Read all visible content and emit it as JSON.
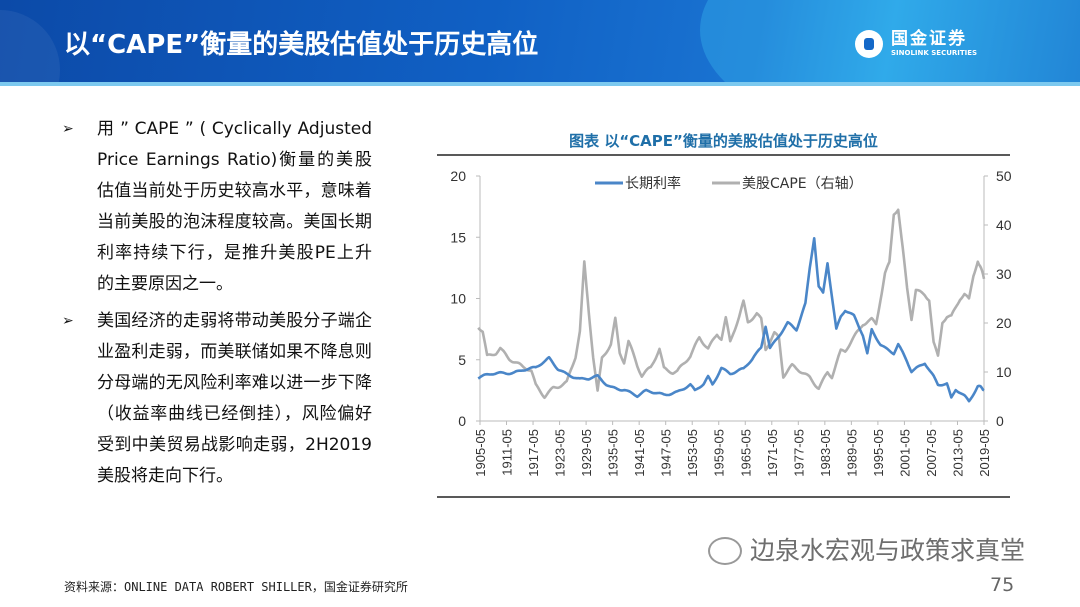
{
  "header": {
    "title": "以“CAPE”衡量的美股估值处于历史高位",
    "logo_cn": "国金证券",
    "logo_en": "SINOLINK SECURITIES"
  },
  "bullets": [
    "用 ” CAPE ” ( Cyclically Adjusted Price Earnings Ratio)衡量的美股估值当前处于历史较高水平，意味着当前美股的泡沫程度较高。美国长期利率持续下行，是推升美股PE上升的主要原因之一。",
    "美国经济的走弱将带动美股分子端企业盈利走弱，而美联储如果不降息则分母端的无风险利率难以进一步下降（收益率曲线已经倒挂），风险偏好受到中美贸易战影响走弱，2H2019美股将走向下行。"
  ],
  "bullet_marker": "➢",
  "source": "资料来源：ONLINE DATA ROBERT SHILLER，国金证券研究所",
  "watermark": "边泉水宏观与政策求真堂",
  "page_number": "75",
  "chart_data": {
    "type": "line",
    "title": "图表  以“CAPE”衡量的美股估值处于历史高位",
    "legend_position": "top",
    "grid": false,
    "x_ticks": [
      "1905-05",
      "1911-05",
      "1917-05",
      "1923-05",
      "1929-05",
      "1935-05",
      "1941-05",
      "1947-05",
      "1953-05",
      "1959-05",
      "1965-05",
      "1971-05",
      "1977-05",
      "1983-05",
      "1989-05",
      "1995-05",
      "2001-05",
      "2007-05",
      "2013-05",
      "2019-05"
    ],
    "xlim": [
      1905.4,
      2019.4
    ],
    "ylim_left": [
      0,
      20
    ],
    "yticks_left": [
      0,
      5,
      10,
      15,
      20
    ],
    "ylim_right": [
      0,
      50
    ],
    "yticks_right": [
      0,
      10,
      20,
      30,
      40,
      50
    ],
    "series": [
      {
        "name": "长期利率",
        "axis": "left",
        "color": "#4a86c8",
        "x": [
          1905,
          1908,
          1910,
          1913,
          1915,
          1918,
          1920,
          1921,
          1923,
          1925,
          1928,
          1930,
          1932,
          1934,
          1935,
          1938,
          1940,
          1941,
          1943,
          1945,
          1947,
          1950,
          1953,
          1954,
          1956,
          1957,
          1958,
          1960,
          1962,
          1965,
          1967,
          1969,
          1970,
          1971,
          1973,
          1975,
          1977,
          1979,
          1980,
          1981,
          1982,
          1983,
          1984,
          1986,
          1987,
          1988,
          1990,
          1992,
          1993,
          1994,
          1996,
          1997,
          1999,
          2000,
          2002,
          2003,
          2006,
          2008,
          2009,
          2011,
          2012,
          2013,
          2015,
          2016,
          2018,
          2019.4
        ],
        "y": [
          3.5,
          3.8,
          3.9,
          4.0,
          4.2,
          4.3,
          4.8,
          5.1,
          4.3,
          3.9,
          3.4,
          3.4,
          3.6,
          3.0,
          2.8,
          2.6,
          2.2,
          2.0,
          2.4,
          2.3,
          2.2,
          2.4,
          2.9,
          2.4,
          3.0,
          3.6,
          3.0,
          4.4,
          3.9,
          4.2,
          5.0,
          6.0,
          7.8,
          6.0,
          7.0,
          8.0,
          7.4,
          9.5,
          12.5,
          15.0,
          11.0,
          10.5,
          13.0,
          7.5,
          8.5,
          9.0,
          8.5,
          7.0,
          5.5,
          7.5,
          6.3,
          6.0,
          5.5,
          6.2,
          4.8,
          4.0,
          4.8,
          3.7,
          3.0,
          3.0,
          1.8,
          2.5,
          2.0,
          1.6,
          2.9,
          2.5
        ]
      },
      {
        "name": "美股CAPE（右轴）",
        "axis": "right",
        "color": "#b0b0b0",
        "x": [
          1905,
          1906,
          1907,
          1909,
          1910,
          1912,
          1915,
          1917,
          1918,
          1920,
          1922,
          1925,
          1927,
          1928,
          1929,
          1930,
          1931,
          1932,
          1933,
          1935,
          1936,
          1937,
          1938,
          1939,
          1941,
          1942,
          1944,
          1946,
          1947,
          1949,
          1950,
          1953,
          1955,
          1957,
          1959,
          1960,
          1961,
          1962,
          1964,
          1965,
          1966,
          1968,
          1969,
          1970,
          1972,
          1973,
          1974,
          1976,
          1978,
          1980,
          1982,
          1984,
          1985,
          1987,
          1988,
          1990,
          1992,
          1994,
          1995,
          1997,
          1998,
          1999,
          2000,
          2001,
          2002,
          2003,
          2004,
          2006,
          2007,
          2008,
          2009,
          2010,
          2011,
          2012,
          2014,
          2015,
          2016,
          2017,
          2018,
          2019.4
        ],
        "y": [
          19,
          18,
          13,
          14,
          15,
          13,
          11,
          10,
          7,
          5,
          7,
          8,
          13,
          18,
          32,
          22,
          13,
          6,
          13,
          16,
          21,
          14,
          12,
          16,
          11,
          9,
          11,
          15,
          11,
          10,
          10,
          13,
          17,
          15,
          18,
          17,
          21,
          16,
          21,
          24,
          20,
          22,
          21,
          15,
          18,
          17,
          9,
          11,
          10,
          9,
          7,
          10,
          9,
          14,
          14,
          17,
          20,
          21,
          20,
          30,
          32,
          42,
          43,
          35,
          27,
          21,
          27,
          26,
          25,
          16,
          13,
          20,
          21,
          21,
          25,
          26,
          25,
          30,
          33,
          29
        ]
      }
    ]
  }
}
